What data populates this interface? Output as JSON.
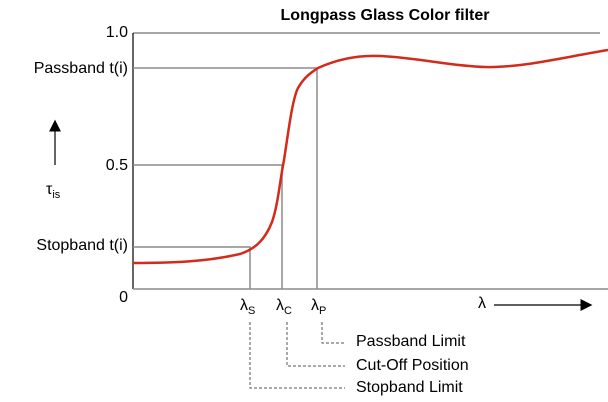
{
  "title": "Longpass Glass Color filter",
  "y_axis": {
    "ticks": [
      "1.0",
      "0.5",
      "0"
    ],
    "passband": "Passband t(i)",
    "stopband": "Stopband t(i)",
    "symbol": {
      "main": "τ",
      "subscript": "is"
    }
  },
  "x_axis": {
    "symbol": "λ",
    "markers": [
      {
        "main": "λ",
        "subscript": "S"
      },
      {
        "main": "λ",
        "subscript": "C"
      },
      {
        "main": "λ",
        "subscript": "P"
      }
    ]
  },
  "annotations": [
    "Passband Limit",
    "Cut-Off Position",
    "Stopband Limit"
  ]
}
